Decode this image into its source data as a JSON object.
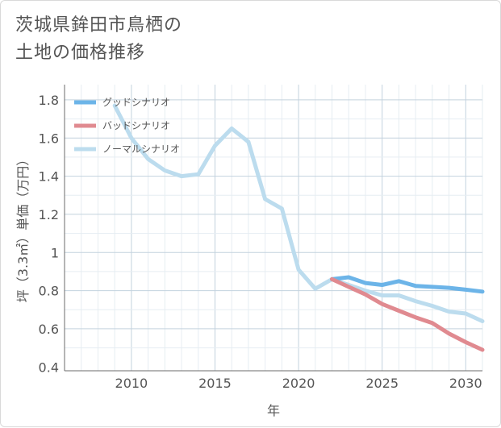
{
  "chart_data": {
    "type": "line",
    "title": "茨城県鉾田市鳥栖の\n土地の価格推移",
    "xlabel": "年",
    "ylabel": "坪（3.3㎡）単価（万円）",
    "xlim": [
      2006,
      2031
    ],
    "ylim": [
      0.38,
      1.88
    ],
    "xticks": [
      2010,
      2015,
      2020,
      2025,
      2030
    ],
    "yticks": [
      0.4,
      0.6,
      0.8,
      1,
      1.2,
      1.4,
      1.6,
      1.8
    ],
    "ytick_labels": [
      "0.4",
      "0.6",
      "0.8",
      "1",
      "1.2",
      "1.4",
      "1.6",
      "1.8"
    ],
    "grid": true,
    "legend_position": "top-left",
    "series": [
      {
        "name": "グッドシナリオ",
        "color": "#6cb4e8",
        "x": [
          2022,
          2023,
          2024,
          2025,
          2026,
          2027,
          2028,
          2029,
          2030,
          2031
        ],
        "y": [
          0.86,
          0.87,
          0.84,
          0.83,
          0.85,
          0.825,
          0.82,
          0.815,
          0.805,
          0.795
        ]
      },
      {
        "name": "バッドシナリオ",
        "color": "#e08a90",
        "x": [
          2022,
          2023,
          2024,
          2025,
          2026,
          2027,
          2028,
          2029,
          2030,
          2031
        ],
        "y": [
          0.86,
          0.82,
          0.78,
          0.73,
          0.695,
          0.66,
          0.63,
          0.575,
          0.53,
          0.49
        ]
      },
      {
        "name": "ノーマルシナリオ",
        "color": "#bcdcee",
        "x": [
          2009,
          2010,
          2011,
          2012,
          2013,
          2014,
          2015,
          2016,
          2017,
          2018,
          2019,
          2020,
          2021,
          2022,
          2023,
          2024,
          2025,
          2026,
          2027,
          2028,
          2029,
          2030,
          2031
        ],
        "y": [
          1.77,
          1.6,
          1.49,
          1.43,
          1.4,
          1.41,
          1.56,
          1.65,
          1.58,
          1.28,
          1.23,
          0.91,
          0.81,
          0.86,
          0.83,
          0.8,
          0.775,
          0.775,
          0.745,
          0.72,
          0.69,
          0.68,
          0.64
        ]
      }
    ]
  }
}
